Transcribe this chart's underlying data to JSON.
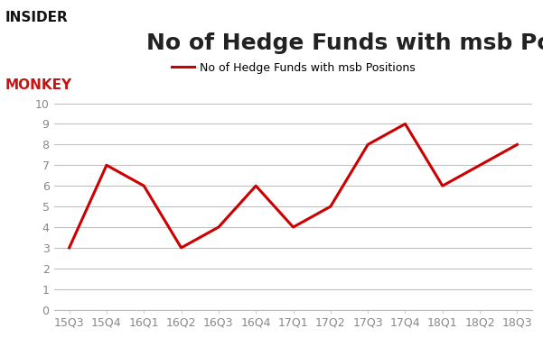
{
  "title": "No of Hedge Funds with msb Positions",
  "legend_label": "No of Hedge Funds with msb Positions",
  "x_labels": [
    "15Q3",
    "15Q4",
    "16Q1",
    "16Q2",
    "16Q3",
    "16Q4",
    "17Q1",
    "17Q2",
    "17Q3",
    "17Q4",
    "18Q1",
    "18Q2",
    "18Q3"
  ],
  "y_values": [
    3,
    7,
    6,
    3,
    4,
    6,
    4,
    5,
    8,
    9,
    6,
    7,
    8
  ],
  "line_color": "#cc0000",
  "ylim": [
    0,
    10
  ],
  "yticks": [
    0,
    1,
    2,
    3,
    4,
    5,
    6,
    7,
    8,
    9,
    10
  ],
  "background_color": "#ffffff",
  "plot_background_color": "#ffffff",
  "grid_color": "#c0c0c0",
  "title_fontsize": 18,
  "legend_fontsize": 9,
  "tick_fontsize": 9,
  "tick_color": "#888888",
  "line_width": 2.2
}
